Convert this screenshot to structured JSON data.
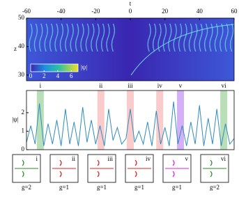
{
  "chart_data": [
    {
      "type": "heatmap",
      "x_label": "t",
      "y_label": "z",
      "xlim": [
        -60,
        60
      ],
      "xticks": [
        -60,
        -40,
        -20,
        0,
        20,
        40,
        60
      ],
      "ylim": [
        28,
        50
      ],
      "yticks": [
        30,
        40,
        50
      ],
      "colorbar": {
        "label": "|ψ|",
        "lim": [
          0,
          7
        ],
        "ticks": [
          0,
          2,
          4,
          6
        ]
      }
    },
    {
      "type": "line",
      "y_label": "|ψ|",
      "xlim": [
        -60,
        60
      ],
      "ylim": [
        0,
        3.2
      ],
      "yticks": [
        0,
        1,
        2
      ],
      "series": [
        {
          "color": "#2e8bc0",
          "x": [
            -60,
            -57.5,
            -55,
            -52.5,
            -50,
            -47.5,
            -45,
            -42.5,
            -40,
            -37.5,
            -35,
            -32.5,
            -30,
            -27.5,
            -25,
            -22.5,
            -20,
            -17.5,
            -15,
            -12.5,
            -10,
            -7.5,
            -5,
            -2.5,
            0,
            2.5,
            5,
            7.5,
            10,
            12.5,
            15,
            17.5,
            20,
            22.5,
            25,
            27.5,
            30,
            32.5,
            35,
            37.5,
            40,
            42.5,
            45,
            47.5,
            50,
            52.5,
            55,
            57.5,
            60
          ],
          "values": [
            0.4,
            1.3,
            0.3,
            2.5,
            0.2,
            1.4,
            0.3,
            1.6,
            0.2,
            2.2,
            0.3,
            1.5,
            0.2,
            2.3,
            0.4,
            1.6,
            0.3,
            1.3,
            0.2,
            2.2,
            0.5,
            1.2,
            0.3,
            0.6,
            2.2,
            0.4,
            1.0,
            0.3,
            1.5,
            0.2,
            2.1,
            0.3,
            1.2,
            0.2,
            2.6,
            0.3,
            1.3,
            0.2,
            1.5,
            0.3,
            2.4,
            0.2,
            1.7,
            0.3,
            2.2,
            0.2,
            1.4,
            0.3,
            0.6
          ]
        }
      ],
      "bands": [
        {
          "label": "i",
          "t": -52,
          "color": "#7fc47f"
        },
        {
          "label": "ii",
          "t": -17,
          "color": "#f4a0a0"
        },
        {
          "label": "iii",
          "t": 0,
          "color": "#f4a0a0"
        },
        {
          "label": "iv",
          "t": 17,
          "color": "#f4a0a0"
        },
        {
          "label": "v",
          "t": 29,
          "color": "#b070f0"
        },
        {
          "label": "vi",
          "t": 54,
          "color": "#7fc47f"
        }
      ]
    }
  ],
  "insets": [
    {
      "label": "i",
      "genus": "g=2",
      "color": "#2a8a2a"
    },
    {
      "label": "ii",
      "genus": "g=1",
      "color": "#e02020"
    },
    {
      "label": "iii",
      "genus": "g=1",
      "color": "#e02020"
    },
    {
      "label": "iv",
      "genus": "g=1",
      "color": "#e02020"
    },
    {
      "label": "v",
      "genus": "g=1",
      "color": "#e020e0"
    },
    {
      "label": "vi",
      "genus": "g=2",
      "color": "#2a8a2a"
    }
  ]
}
